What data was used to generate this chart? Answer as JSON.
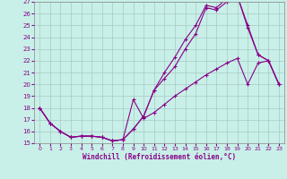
{
  "xlabel": "Windchill (Refroidissement éolien,°C)",
  "bg_color": "#c8f0e8",
  "grid_color": "#a8c8c4",
  "line_color": "#880088",
  "xlim": [
    -0.5,
    23.5
  ],
  "ylim": [
    15,
    27
  ],
  "xticks": [
    0,
    1,
    2,
    3,
    4,
    5,
    6,
    7,
    8,
    9,
    10,
    11,
    12,
    13,
    14,
    15,
    16,
    17,
    18,
    19,
    20,
    21,
    22,
    23
  ],
  "yticks": [
    15,
    16,
    17,
    18,
    19,
    20,
    21,
    22,
    23,
    24,
    25,
    26,
    27
  ],
  "series1_x": [
    0,
    1,
    2,
    3,
    4,
    5,
    6,
    7,
    8,
    9,
    10,
    11,
    12,
    13,
    14,
    15,
    16,
    17,
    18,
    19,
    20,
    21,
    22,
    23
  ],
  "series1_y": [
    18.0,
    16.7,
    16.0,
    15.5,
    15.6,
    15.6,
    15.5,
    15.2,
    15.3,
    18.7,
    17.1,
    17.6,
    18.3,
    19.0,
    19.6,
    20.2,
    20.8,
    21.3,
    21.8,
    22.2,
    20.0,
    21.8,
    22.0,
    20.0
  ],
  "series2_x": [
    0,
    1,
    2,
    3,
    4,
    5,
    6,
    7,
    8,
    9,
    10,
    11,
    12,
    13,
    14,
    15,
    16,
    17,
    18,
    19,
    20,
    21,
    22,
    23
  ],
  "series2_y": [
    18.0,
    16.7,
    16.0,
    15.5,
    15.6,
    15.6,
    15.5,
    15.2,
    15.3,
    16.2,
    17.3,
    19.5,
    21.0,
    22.3,
    23.8,
    25.0,
    26.7,
    26.5,
    27.3,
    27.5,
    25.0,
    22.5,
    22.0,
    20.0
  ],
  "series3_x": [
    0,
    1,
    2,
    3,
    4,
    5,
    6,
    7,
    8,
    9,
    10,
    11,
    12,
    13,
    14,
    15,
    16,
    17,
    18,
    19,
    20,
    21,
    22,
    23
  ],
  "series3_y": [
    18.0,
    16.7,
    16.0,
    15.5,
    15.6,
    15.6,
    15.5,
    15.2,
    15.3,
    16.2,
    17.3,
    19.5,
    20.5,
    21.5,
    23.0,
    24.3,
    26.5,
    26.3,
    27.0,
    27.5,
    24.8,
    22.5,
    22.0,
    20.0
  ]
}
